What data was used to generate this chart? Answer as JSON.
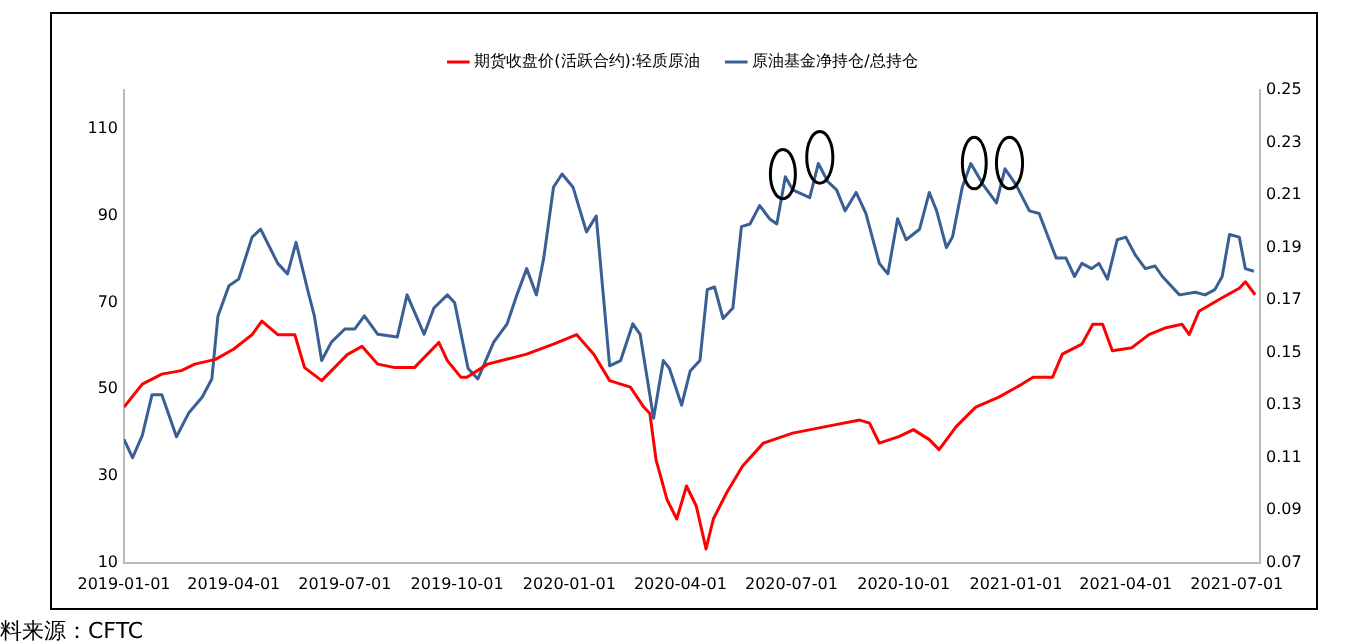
{
  "chart_data": {
    "type": "line",
    "series": [
      {
        "name": "期货收盘价(活跃合约):轻质原油",
        "color": "#ff0000",
        "x": [
          "2019-01-01",
          "2019-01-16",
          "2019-02-01",
          "2019-02-17",
          "2019-02-28",
          "2019-03-17",
          "2019-04-01",
          "2019-04-16",
          "2019-04-24",
          "2019-05-07",
          "2019-05-21",
          "2019-05-29",
          "2019-06-12",
          "2019-07-03",
          "2019-07-15",
          "2019-07-28",
          "2019-08-11",
          "2019-08-27",
          "2019-09-16",
          "2019-09-23",
          "2019-10-04",
          "2019-10-09",
          "2019-10-26",
          "2019-11-27",
          "2019-12-19",
          "2020-01-07",
          "2020-01-21",
          "2020-02-03",
          "2020-02-20",
          "2020-03-02",
          "2020-03-07",
          "2020-03-12",
          "2020-03-21",
          "2020-03-29",
          "2020-04-06",
          "2020-04-14",
          "2020-04-22",
          "2020-04-28",
          "2020-05-09",
          "2020-05-22",
          "2020-06-08",
          "2020-07-02",
          "2020-07-29",
          "2020-08-26",
          "2020-09-03",
          "2020-09-11",
          "2020-09-27",
          "2020-10-09",
          "2020-10-22",
          "2020-10-30",
          "2020-11-13",
          "2020-11-29",
          "2020-12-18",
          "2021-01-06",
          "2021-01-15",
          "2021-01-31",
          "2021-02-08",
          "2021-02-24",
          "2021-03-05",
          "2021-03-13",
          "2021-03-21",
          "2021-04-06",
          "2021-04-20",
          "2021-05-04",
          "2021-05-17",
          "2021-05-23",
          "2021-05-31",
          "2021-06-19",
          "2021-07-03",
          "2021-07-08",
          "2021-07-16"
        ],
        "values": [
          45.9,
          51.2,
          53.5,
          54.3,
          55.8,
          56.9,
          59.3,
          62.6,
          65.7,
          62.6,
          62.6,
          55,
          52,
          58,
          59.9,
          55.8,
          55,
          55,
          60.8,
          56.6,
          52.8,
          52.8,
          55.8,
          58.1,
          60.4,
          62.6,
          58.1,
          52,
          50.5,
          45.9,
          44.4,
          33.8,
          24.6,
          20.1,
          27.7,
          23.1,
          13.2,
          20.1,
          26.2,
          32.3,
          37.6,
          39.9,
          41.4,
          42.9,
          42.2,
          37.6,
          39.1,
          40.7,
          38.4,
          36.1,
          41.4,
          45.9,
          48.2,
          51.2,
          52.8,
          52.8,
          58.1,
          60.4,
          65,
          65,
          58.9,
          59.6,
          62.6,
          64.2,
          65,
          62.6,
          68,
          71.1,
          73.3,
          74.8,
          71.8
        ]
      },
      {
        "name": "原油基金净持仓/总持仓",
        "color": "#3a5f94",
        "axis": "y2",
        "x": [
          "2019-01-01",
          "2019-01-08",
          "2019-01-16",
          "2019-01-24",
          "2019-02-01",
          "2019-02-13",
          "2019-02-23",
          "2019-03-06",
          "2019-03-14",
          "2019-03-19",
          "2019-03-28",
          "2019-04-05",
          "2019-04-16",
          "2019-04-23",
          "2019-05-07",
          "2019-05-15",
          "2019-05-22",
          "2019-06-01",
          "2019-06-06",
          "2019-06-12",
          "2019-06-20",
          "2019-07-01",
          "2019-07-09",
          "2019-07-17",
          "2019-07-28",
          "2019-08-13",
          "2019-08-21",
          "2019-09-04",
          "2019-09-12",
          "2019-09-23",
          "2019-09-29",
          "2019-10-10",
          "2019-10-18",
          "2019-10-31",
          "2019-11-11",
          "2019-11-19",
          "2019-11-27",
          "2019-12-05",
          "2019-12-11",
          "2019-12-19",
          "2019-12-26",
          "2020-01-04",
          "2020-01-15",
          "2020-01-23",
          "2020-02-03",
          "2020-02-12",
          "2020-02-22",
          "2020-02-28",
          "2020-03-10",
          "2020-03-18",
          "2020-03-23",
          "2020-04-02",
          "2020-04-09",
          "2020-04-17",
          "2020-04-23",
          "2020-04-29",
          "2020-05-06",
          "2020-05-14",
          "2020-05-21",
          "2020-05-28",
          "2020-06-05",
          "2020-06-13",
          "2020-06-19",
          "2020-06-26",
          "2020-07-02",
          "2020-07-16",
          "2020-07-23",
          "2020-07-31",
          "2020-08-07",
          "2020-08-14",
          "2020-08-23",
          "2020-08-31",
          "2020-09-11",
          "2020-09-18",
          "2020-09-26",
          "2020-10-03",
          "2020-10-14",
          "2020-10-22",
          "2020-10-28",
          "2020-11-05",
          "2020-11-10",
          "2020-11-18",
          "2020-11-25",
          "2020-12-05",
          "2020-12-16",
          "2020-12-23",
          "2021-01-01",
          "2021-01-12",
          "2021-01-20",
          "2021-02-03",
          "2021-02-11",
          "2021-02-18",
          "2021-02-24",
          "2021-03-04",
          "2021-03-10",
          "2021-03-17",
          "2021-03-25",
          "2021-04-01",
          "2021-04-09",
          "2021-04-17",
          "2021-04-25",
          "2021-05-01",
          "2021-05-15",
          "2021-05-28",
          "2021-06-05",
          "2021-06-13",
          "2021-06-19",
          "2021-06-25",
          "2021-07-03",
          "2021-07-08",
          "2021-07-15"
        ],
        "values": [
          0.117,
          0.11,
          0.1185,
          0.134,
          0.134,
          0.118,
          0.127,
          0.133,
          0.14,
          0.164,
          0.1755,
          0.178,
          0.194,
          0.197,
          0.184,
          0.18,
          0.192,
          0.173,
          0.164,
          0.147,
          0.154,
          0.159,
          0.159,
          0.164,
          0.157,
          0.156,
          0.172,
          0.157,
          0.167,
          0.172,
          0.169,
          0.144,
          0.14,
          0.154,
          0.161,
          0.172,
          0.182,
          0.172,
          0.186,
          0.213,
          0.218,
          0.213,
          0.196,
          0.202,
          0.145,
          0.147,
          0.161,
          0.157,
          0.125,
          0.147,
          0.144,
          0.13,
          0.143,
          0.147,
          0.174,
          0.175,
          0.163,
          0.167,
          0.198,
          0.199,
          0.206,
          0.201,
          0.199,
          0.217,
          0.212,
          0.209,
          0.222,
          0.215,
          0.212,
          0.204,
          0.211,
          0.203,
          0.184,
          0.18,
          0.201,
          0.193,
          0.197,
          0.211,
          0.204,
          0.19,
          0.194,
          0.213,
          0.222,
          0.214,
          0.207,
          0.22,
          0.214,
          0.204,
          0.203,
          0.186,
          0.186,
          0.179,
          0.184,
          0.182,
          0.184,
          0.178,
          0.193,
          0.194,
          0.187,
          0.182,
          0.183,
          0.179,
          0.172,
          0.173,
          0.172,
          0.174,
          0.179,
          0.195,
          0.194,
          0.182,
          0.181
        ]
      }
    ],
    "xlim": [
      "2019-01-01",
      "2021-07-20"
    ],
    "xticks": [
      "2019-01-01",
      "2019-04-01",
      "2019-07-01",
      "2019-10-01",
      "2020-01-01",
      "2020-04-01",
      "2020-07-01",
      "2020-10-01",
      "2021-01-01",
      "2021-04-01",
      "2021-07-01"
    ],
    "ylim": [
      10,
      119
    ],
    "yticks": [
      10,
      30,
      50,
      70,
      90,
      110
    ],
    "y2lim": [
      0.07,
      0.25
    ],
    "y2ticks": [
      0.07,
      0.09,
      0.11,
      0.13,
      0.15,
      0.17,
      0.19,
      0.21,
      0.23,
      0.25
    ],
    "legend": "top",
    "grid": false,
    "annotations": [
      "料来源：CFTC"
    ]
  }
}
